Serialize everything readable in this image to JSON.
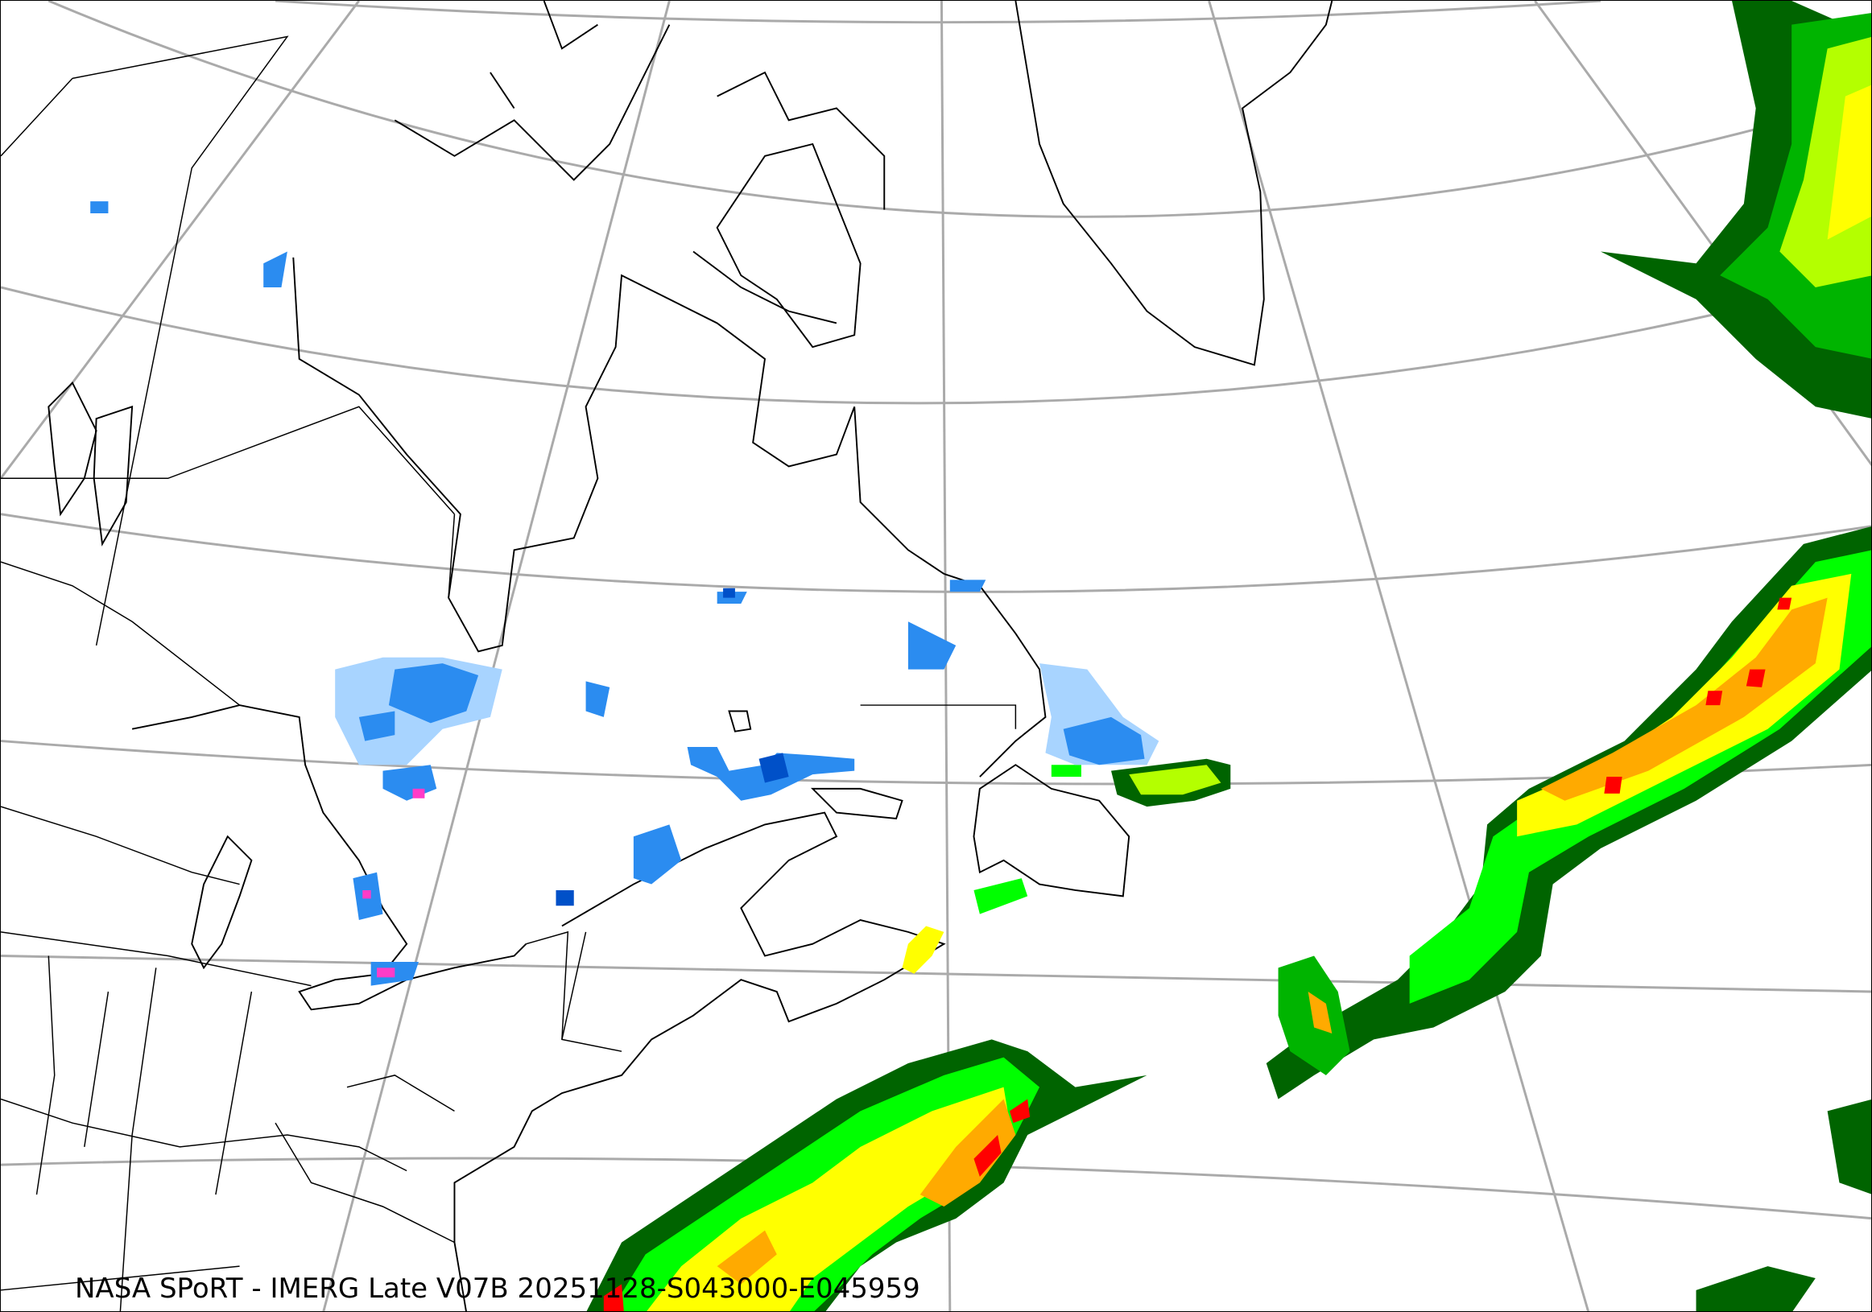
{
  "caption": "NASA SPoRT - IMERG Late V07B 20251128-S043000-E045959",
  "colors": {
    "light_blue": "#a8d4ff",
    "blue": "#2b8cf0",
    "dark_blue": "#0050c8",
    "magenta": "#ff3cc8",
    "dark_green": "#006400",
    "green": "#00b400",
    "light_green": "#00ff00",
    "yellow_green": "#b4ff00",
    "yellow": "#ffff00",
    "orange": "#ffaa00",
    "red": "#ff0000",
    "graticule": "#aaaaaa",
    "coastline": "#000000"
  }
}
